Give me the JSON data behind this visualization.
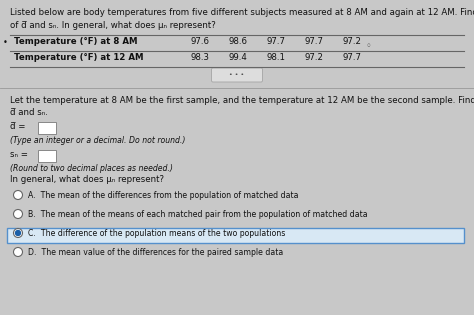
{
  "title_line1": "Listed below are body temperatures from five different subjects measured at 8 AM and again at 12 AM. Find the values",
  "title_line2": "of d̅ and sₙ. In general, what does μₙ represent?",
  "table_header1": "Temperature (°F) at 8 AM",
  "table_header2": "Temperature (°F) at 12 AM",
  "row1_values": [
    "97.6",
    "98.6",
    "97.7",
    "97.7",
    "97.2"
  ],
  "row2_values": [
    "98.3",
    "99.4",
    "98.1",
    "97.2",
    "97.7"
  ],
  "para_line1": "Let the temperature at 8 AM be the first sample, and the temperature at 12 AM be the second sample. Find the values of",
  "para_line2": "d̅ and sₙ.",
  "d_label": "d̅ =",
  "d_hint": "(Type an integer or a decimal. Do not round.)",
  "sd_label": "sₙ =",
  "sd_hint": "(Round to two decimal places as needed.)",
  "question": "In general, what does μₙ represent?",
  "options": [
    "A.  The mean of the differences from the population of matched data",
    "B.  The mean of the means of each matched pair from the population of matched data",
    "C.  The difference of the population means of the two populations",
    "D.  The mean value of the differences for the paired sample data"
  ],
  "selected_option": 2,
  "bg_color": "#c8c8c8",
  "text_color": "#111111",
  "box_color": "#ffffff",
  "selected_box_color": "#d8e8f4",
  "selected_border_color": "#5590cc",
  "table_line_color": "#666666",
  "ellipsis_bg": "#dddddd",
  "sep_line_color": "#999999"
}
